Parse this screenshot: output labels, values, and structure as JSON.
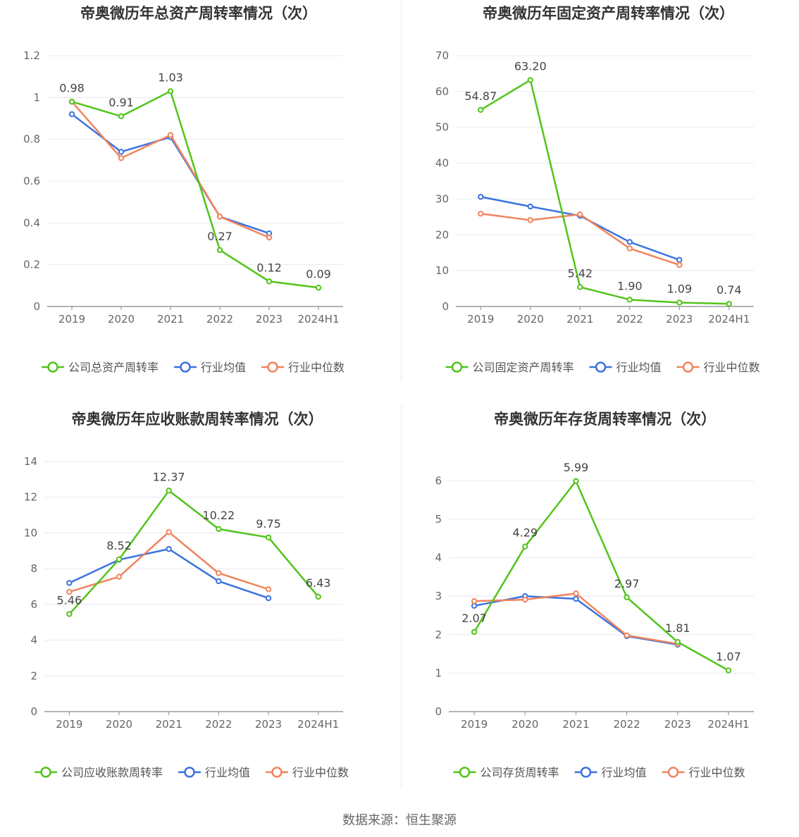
{
  "source_label": "数据来源：恒生聚源",
  "colors": {
    "company": "#52c41a",
    "avg": "#3b72e0",
    "median": "#f0845c",
    "grid": "#e6e8f0",
    "axis": "#666666",
    "label": "#444444"
  },
  "chart_data": [
    {
      "type": "line",
      "title": "帝奥微历年总资产周转率情况（次）",
      "categories": [
        "2019",
        "2020",
        "2021",
        "2022",
        "2023",
        "2024H1"
      ],
      "ylim": [
        0,
        1.2
      ],
      "yticks": [
        "0",
        "0.2",
        "0.4",
        "0.6",
        "0.8",
        "1",
        "1.2"
      ],
      "series": [
        {
          "key": "company",
          "name": "公司总资产周转率",
          "values": [
            0.98,
            0.91,
            1.03,
            0.27,
            0.12,
            0.09
          ],
          "labels": [
            "0.98",
            "0.91",
            "1.03",
            "0.27",
            "0.12",
            "0.09"
          ]
        },
        {
          "key": "avg",
          "name": "行业均值",
          "values": [
            0.92,
            0.74,
            0.81,
            0.43,
            0.35,
            null
          ]
        },
        {
          "key": "median",
          "name": "行业中位数",
          "values": [
            0.98,
            0.71,
            0.82,
            0.43,
            0.33,
            null
          ]
        }
      ]
    },
    {
      "type": "line",
      "title": "帝奥微历年固定资产周转率情况（次）",
      "categories": [
        "2019",
        "2020",
        "2021",
        "2022",
        "2023",
        "2024H1"
      ],
      "ylim": [
        0,
        70
      ],
      "yticks": [
        "0",
        "10",
        "20",
        "30",
        "40",
        "50",
        "60",
        "70"
      ],
      "series": [
        {
          "key": "company",
          "name": "公司固定资产周转率",
          "values": [
            54.87,
            63.2,
            5.42,
            1.9,
            1.09,
            0.74
          ],
          "labels": [
            "54.87",
            "63.20",
            "5.42",
            "1.90",
            "1.09",
            "0.74"
          ]
        },
        {
          "key": "avg",
          "name": "行业均值",
          "values": [
            30.6,
            27.9,
            25.3,
            18.0,
            13.0,
            null
          ]
        },
        {
          "key": "median",
          "name": "行业中位数",
          "values": [
            25.9,
            24.1,
            25.7,
            16.2,
            11.6,
            null
          ]
        }
      ]
    },
    {
      "type": "line",
      "title": "帝奥微历年应收账款周转率情况（次）",
      "categories": [
        "2019",
        "2020",
        "2021",
        "2022",
        "2023",
        "2024H1"
      ],
      "ylim": [
        0,
        14
      ],
      "yticks": [
        "0",
        "2",
        "4",
        "6",
        "8",
        "10",
        "12",
        "14"
      ],
      "series": [
        {
          "key": "company",
          "name": "公司应收账款周转率",
          "values": [
            5.46,
            8.52,
            12.37,
            10.22,
            9.75,
            6.43
          ],
          "labels": [
            "5.46",
            "8.52",
            "12.37",
            "10.22",
            "9.75",
            "6.43"
          ]
        },
        {
          "key": "avg",
          "name": "行业均值",
          "values": [
            7.2,
            8.5,
            9.1,
            7.3,
            6.35,
            null
          ]
        },
        {
          "key": "median",
          "name": "行业中位数",
          "values": [
            6.7,
            7.55,
            10.05,
            7.75,
            6.85,
            null
          ]
        }
      ]
    },
    {
      "type": "line",
      "title": "帝奥微历年存货周转率情况（次）",
      "categories": [
        "2019",
        "2020",
        "2021",
        "2022",
        "2023",
        "2024H1"
      ],
      "ylim": [
        0,
        6.5
      ],
      "yticks": [
        "0",
        "1",
        "2",
        "3",
        "4",
        "5",
        "6"
      ],
      "series": [
        {
          "key": "company",
          "name": "公司存货周转率",
          "values": [
            2.07,
            4.29,
            5.99,
            2.97,
            1.81,
            1.07
          ],
          "labels": [
            "2.07",
            "4.29",
            "5.99",
            "2.97",
            "1.81",
            "1.07"
          ]
        },
        {
          "key": "avg",
          "name": "行业均值",
          "values": [
            2.75,
            3.0,
            2.93,
            1.96,
            1.74,
            null
          ]
        },
        {
          "key": "median",
          "name": "行业中位数",
          "values": [
            2.87,
            2.91,
            3.07,
            1.98,
            1.76,
            null
          ]
        }
      ]
    }
  ]
}
